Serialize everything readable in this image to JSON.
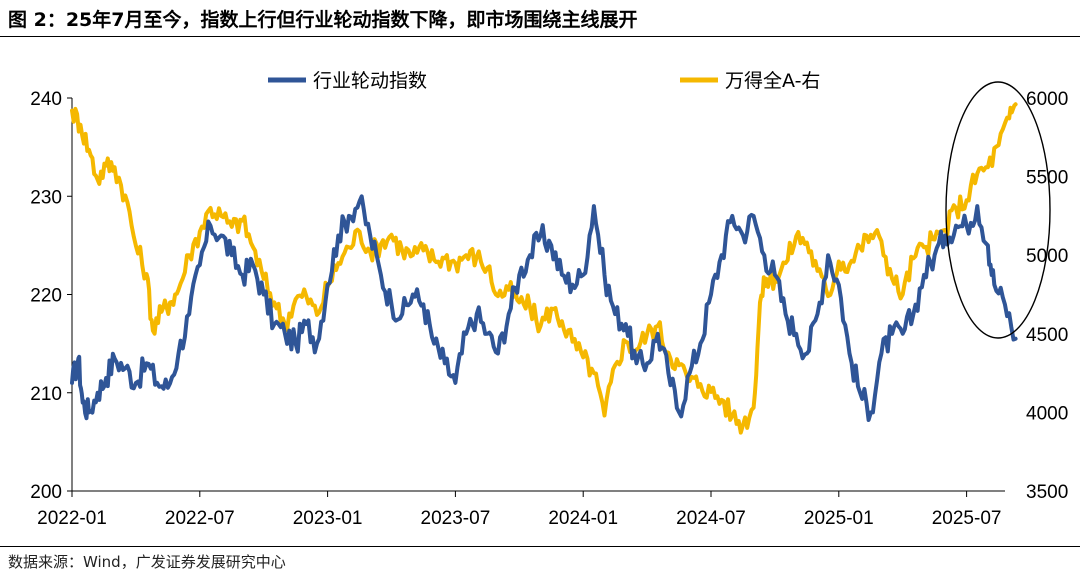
{
  "title": "图 2：25年7月至今，指数上行但行业轮动指数下降，即市场围绕主线展开",
  "source": "数据来源：Wind，广发证券发展研究中心",
  "chart_data": {
    "type": "line",
    "title": "",
    "xlabel": "",
    "ylabel_left": "",
    "ylabel_right": "",
    "grid": false,
    "legend": "top-center",
    "x_ticks": [
      "2022-01",
      "2022-07",
      "2023-01",
      "2023-07",
      "2024-01",
      "2024-07",
      "2025-01",
      "2025-07"
    ],
    "y_left": {
      "lim": [
        200,
        240
      ],
      "ticks": [
        "200",
        "210",
        "220",
        "230",
        "240"
      ]
    },
    "y_right": {
      "lim": [
        3500,
        6000
      ],
      "ticks": [
        "3500",
        "4000",
        "4500",
        "5000",
        "5500",
        "6000"
      ]
    },
    "x_range_months": [
      0,
      44.3
    ],
    "annotation": {
      "type": "ellipse",
      "around": "2025-05 to 2025-09"
    },
    "series": [
      {
        "name": "行业轮动指数",
        "axis": "left",
        "color": "#2f5597",
        "points": [
          [
            0.0,
            211
          ],
          [
            0.3,
            213.5
          ],
          [
            0.5,
            209
          ],
          [
            0.8,
            208
          ],
          [
            1.2,
            210
          ],
          [
            1.6,
            211.5
          ],
          [
            2.0,
            213.5
          ],
          [
            2.5,
            212.5
          ],
          [
            3.0,
            211
          ],
          [
            3.5,
            213
          ],
          [
            4.0,
            211
          ],
          [
            4.5,
            210.5
          ],
          [
            5.0,
            214
          ],
          [
            5.5,
            218
          ],
          [
            6.0,
            223
          ],
          [
            6.5,
            227
          ],
          [
            7.0,
            226
          ],
          [
            7.5,
            224
          ],
          [
            8.0,
            222
          ],
          [
            8.5,
            223
          ],
          [
            9.0,
            220
          ],
          [
            9.5,
            217
          ],
          [
            10.0,
            216
          ],
          [
            10.5,
            215
          ],
          [
            11.0,
            217
          ],
          [
            11.5,
            215
          ],
          [
            12.0,
            221
          ],
          [
            12.5,
            226
          ],
          [
            13.0,
            228
          ],
          [
            13.5,
            229.5
          ],
          [
            14.0,
            226
          ],
          [
            14.5,
            222
          ],
          [
            15.0,
            219
          ],
          [
            15.5,
            218
          ],
          [
            16.0,
            220
          ],
          [
            16.5,
            219
          ],
          [
            17.0,
            215
          ],
          [
            17.5,
            213
          ],
          [
            18.0,
            211
          ],
          [
            18.5,
            216
          ],
          [
            19.0,
            218
          ],
          [
            19.5,
            216
          ],
          [
            20.0,
            214
          ],
          [
            20.5,
            218
          ],
          [
            21.0,
            222
          ],
          [
            21.5,
            224
          ],
          [
            22.0,
            226
          ],
          [
            22.5,
            225
          ],
          [
            23.0,
            222
          ],
          [
            23.5,
            221
          ],
          [
            24.0,
            222
          ],
          [
            24.5,
            229
          ],
          [
            25.0,
            222
          ],
          [
            25.5,
            218
          ],
          [
            26.0,
            217
          ],
          [
            26.5,
            213
          ],
          [
            27.0,
            213
          ],
          [
            27.5,
            216
          ],
          [
            28.0,
            212
          ],
          [
            28.5,
            208
          ],
          [
            29.0,
            212
          ],
          [
            29.5,
            215
          ],
          [
            30.0,
            220
          ],
          [
            30.5,
            224
          ],
          [
            31.0,
            228
          ],
          [
            31.5,
            226
          ],
          [
            32.0,
            228
          ],
          [
            32.5,
            224
          ],
          [
            33.0,
            222
          ],
          [
            33.5,
            218
          ],
          [
            34.0,
            216
          ],
          [
            34.5,
            214
          ],
          [
            35.0,
            218
          ],
          [
            35.5,
            224
          ],
          [
            36.0,
            221
          ],
          [
            36.5,
            214
          ],
          [
            37.0,
            210
          ],
          [
            37.5,
            208
          ],
          [
            38.0,
            214
          ],
          [
            38.5,
            216
          ],
          [
            39.0,
            216
          ],
          [
            39.5,
            218
          ],
          [
            40.0,
            222
          ],
          [
            40.5,
            224
          ],
          [
            41.0,
            226
          ],
          [
            41.5,
            227
          ],
          [
            42.0,
            227
          ],
          [
            42.5,
            229
          ],
          [
            43.0,
            225
          ],
          [
            43.3,
            221
          ],
          [
            43.8,
            219
          ],
          [
            44.3,
            215.5
          ]
        ]
      },
      {
        "name": "万得全A-右",
        "axis": "right",
        "color": "#f5b800",
        "points": [
          [
            0.0,
            5920
          ],
          [
            0.4,
            5830
          ],
          [
            0.8,
            5670
          ],
          [
            1.2,
            5480
          ],
          [
            1.6,
            5570
          ],
          [
            2.0,
            5560
          ],
          [
            2.5,
            5380
          ],
          [
            3.0,
            5060
          ],
          [
            3.5,
            4880
          ],
          [
            3.8,
            4520
          ],
          [
            4.2,
            4640
          ],
          [
            4.6,
            4700
          ],
          [
            5.0,
            4780
          ],
          [
            5.5,
            5000
          ],
          [
            6.0,
            5150
          ],
          [
            6.5,
            5300
          ],
          [
            7.0,
            5250
          ],
          [
            7.5,
            5180
          ],
          [
            8.0,
            5220
          ],
          [
            8.5,
            5050
          ],
          [
            9.0,
            4850
          ],
          [
            9.5,
            4700
          ],
          [
            10.0,
            4560
          ],
          [
            10.5,
            4720
          ],
          [
            11.0,
            4740
          ],
          [
            11.5,
            4620
          ],
          [
            12.0,
            4800
          ],
          [
            12.5,
            4950
          ],
          [
            13.0,
            5050
          ],
          [
            13.5,
            5150
          ],
          [
            14.0,
            5020
          ],
          [
            14.5,
            5070
          ],
          [
            15.0,
            5130
          ],
          [
            15.5,
            5030
          ],
          [
            16.0,
            5000
          ],
          [
            16.5,
            5030
          ],
          [
            17.0,
            4970
          ],
          [
            17.5,
            4980
          ],
          [
            18.0,
            4950
          ],
          [
            18.5,
            5000
          ],
          [
            19.0,
            4990
          ],
          [
            19.5,
            4920
          ],
          [
            20.0,
            4740
          ],
          [
            20.5,
            4780
          ],
          [
            21.0,
            4700
          ],
          [
            21.5,
            4670
          ],
          [
            22.0,
            4550
          ],
          [
            22.5,
            4660
          ],
          [
            23.0,
            4580
          ],
          [
            23.5,
            4450
          ],
          [
            24.0,
            4350
          ],
          [
            24.5,
            4250
          ],
          [
            25.0,
            3980
          ],
          [
            25.5,
            4300
          ],
          [
            26.0,
            4450
          ],
          [
            26.5,
            4400
          ],
          [
            27.0,
            4500
          ],
          [
            27.5,
            4550
          ],
          [
            28.0,
            4380
          ],
          [
            28.5,
            4300
          ],
          [
            29.0,
            4200
          ],
          [
            29.5,
            4180
          ],
          [
            30.0,
            4130
          ],
          [
            30.5,
            4080
          ],
          [
            31.0,
            3980
          ],
          [
            31.5,
            3920
          ],
          [
            32.0,
            4030
          ],
          [
            32.3,
            4700
          ],
          [
            32.6,
            4850
          ],
          [
            33.0,
            4850
          ],
          [
            33.5,
            4950
          ],
          [
            34.0,
            5120
          ],
          [
            34.5,
            5080
          ],
          [
            35.0,
            4900
          ],
          [
            35.5,
            4740
          ],
          [
            36.0,
            4960
          ],
          [
            36.5,
            4940
          ],
          [
            37.0,
            5050
          ],
          [
            37.5,
            5130
          ],
          [
            38.0,
            5090
          ],
          [
            38.5,
            4850
          ],
          [
            39.0,
            4750
          ],
          [
            39.5,
            4980
          ],
          [
            40.0,
            5050
          ],
          [
            40.5,
            5100
          ],
          [
            41.0,
            5160
          ],
          [
            41.5,
            5300
          ],
          [
            42.0,
            5350
          ],
          [
            42.5,
            5520
          ],
          [
            43.0,
            5560
          ],
          [
            43.5,
            5700
          ],
          [
            44.0,
            5870
          ],
          [
            44.3,
            5960
          ]
        ]
      }
    ]
  }
}
